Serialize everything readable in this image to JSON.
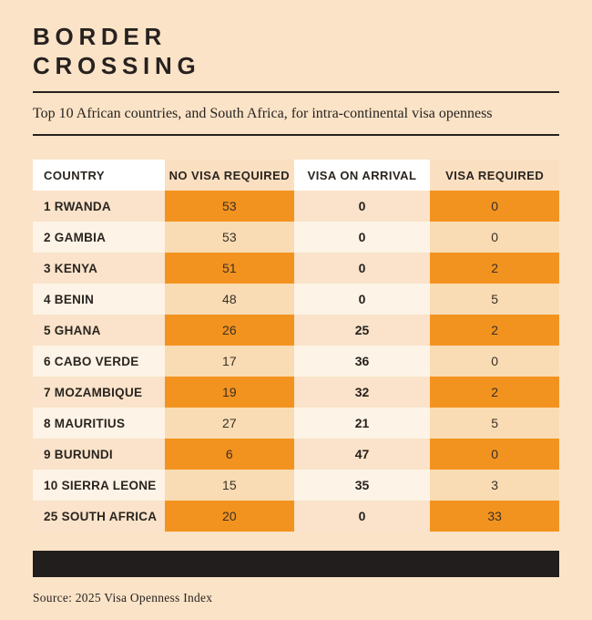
{
  "colors": {
    "background": "#FBE3C7",
    "orange_accent": "#F3931F",
    "peach_row": "#FAE3CA",
    "cream_row": "#FDF3E6",
    "peach_cell": "#F9DCB4",
    "header_peach": "#FBDFC1",
    "header_white": "#FFFFFF",
    "ink": "#272220",
    "bar_black": "#211E1D"
  },
  "header": {
    "title_line1": "BORDER",
    "title_line2": "CROSSING",
    "subtitle": "Top 10 African countries, and South Africa, for intra-continental visa openness"
  },
  "table": {
    "columns": [
      "COUNTRY",
      "NO VISA REQUIRED",
      "VISA ON ARRIVAL",
      "VISA REQUIRED"
    ],
    "rows": [
      {
        "label": "1 RWANDA",
        "no_visa_required": "53",
        "visa_on_arrival": "0",
        "visa_required": "0"
      },
      {
        "label": "2 GAMBIA",
        "no_visa_required": "53",
        "visa_on_arrival": "0",
        "visa_required": "0"
      },
      {
        "label": "3 KENYA",
        "no_visa_required": "51",
        "visa_on_arrival": "0",
        "visa_required": "2"
      },
      {
        "label": "4 BENIN",
        "no_visa_required": "48",
        "visa_on_arrival": "0",
        "visa_required": "5"
      },
      {
        "label": "5 GHANA",
        "no_visa_required": "26",
        "visa_on_arrival": "25",
        "visa_required": "2"
      },
      {
        "label": "6 CABO VERDE",
        "no_visa_required": "17",
        "visa_on_arrival": "36",
        "visa_required": "0"
      },
      {
        "label": "7 MOZAMBIQUE",
        "no_visa_required": "19",
        "visa_on_arrival": "32",
        "visa_required": "2"
      },
      {
        "label": "8 MAURITIUS",
        "no_visa_required": "27",
        "visa_on_arrival": "21",
        "visa_required": "5"
      },
      {
        "label": "9 BURUNDI",
        "no_visa_required": "6",
        "visa_on_arrival": "47",
        "visa_required": "0"
      },
      {
        "label": "10 SIERRA LEONE",
        "no_visa_required": "15",
        "visa_on_arrival": "35",
        "visa_required": "3"
      },
      {
        "label": "25 SOUTH AFRICA",
        "no_visa_required": "20",
        "visa_on_arrival": "0",
        "visa_required": "33"
      }
    ]
  },
  "footer": {
    "source": "Source: 2025 Visa Openness Index"
  },
  "chart_data": {
    "type": "table",
    "title": "BORDER CROSSING",
    "subtitle": "Top 10 African countries, and South Africa, for intra-continental visa openness",
    "columns": [
      "Country",
      "No visa required",
      "Visa on arrival",
      "Visa required"
    ],
    "rows": [
      {
        "rank": 1,
        "country": "Rwanda",
        "no_visa_required": 53,
        "visa_on_arrival": 0,
        "visa_required": 0
      },
      {
        "rank": 2,
        "country": "Gambia",
        "no_visa_required": 53,
        "visa_on_arrival": 0,
        "visa_required": 0
      },
      {
        "rank": 3,
        "country": "Kenya",
        "no_visa_required": 51,
        "visa_on_arrival": 0,
        "visa_required": 2
      },
      {
        "rank": 4,
        "country": "Benin",
        "no_visa_required": 48,
        "visa_on_arrival": 0,
        "visa_required": 5
      },
      {
        "rank": 5,
        "country": "Ghana",
        "no_visa_required": 26,
        "visa_on_arrival": 25,
        "visa_required": 2
      },
      {
        "rank": 6,
        "country": "Cabo Verde",
        "no_visa_required": 17,
        "visa_on_arrival": 36,
        "visa_required": 0
      },
      {
        "rank": 7,
        "country": "Mozambique",
        "no_visa_required": 19,
        "visa_on_arrival": 32,
        "visa_required": 2
      },
      {
        "rank": 8,
        "country": "Mauritius",
        "no_visa_required": 27,
        "visa_on_arrival": 21,
        "visa_required": 5
      },
      {
        "rank": 9,
        "country": "Burundi",
        "no_visa_required": 6,
        "visa_on_arrival": 47,
        "visa_required": 0
      },
      {
        "rank": 10,
        "country": "Sierra Leone",
        "no_visa_required": 15,
        "visa_on_arrival": 35,
        "visa_required": 3
      },
      {
        "rank": 25,
        "country": "South Africa",
        "no_visa_required": 20,
        "visa_on_arrival": 0,
        "visa_required": 33
      }
    ],
    "source": "Source: 2025 Visa Openness Index"
  }
}
